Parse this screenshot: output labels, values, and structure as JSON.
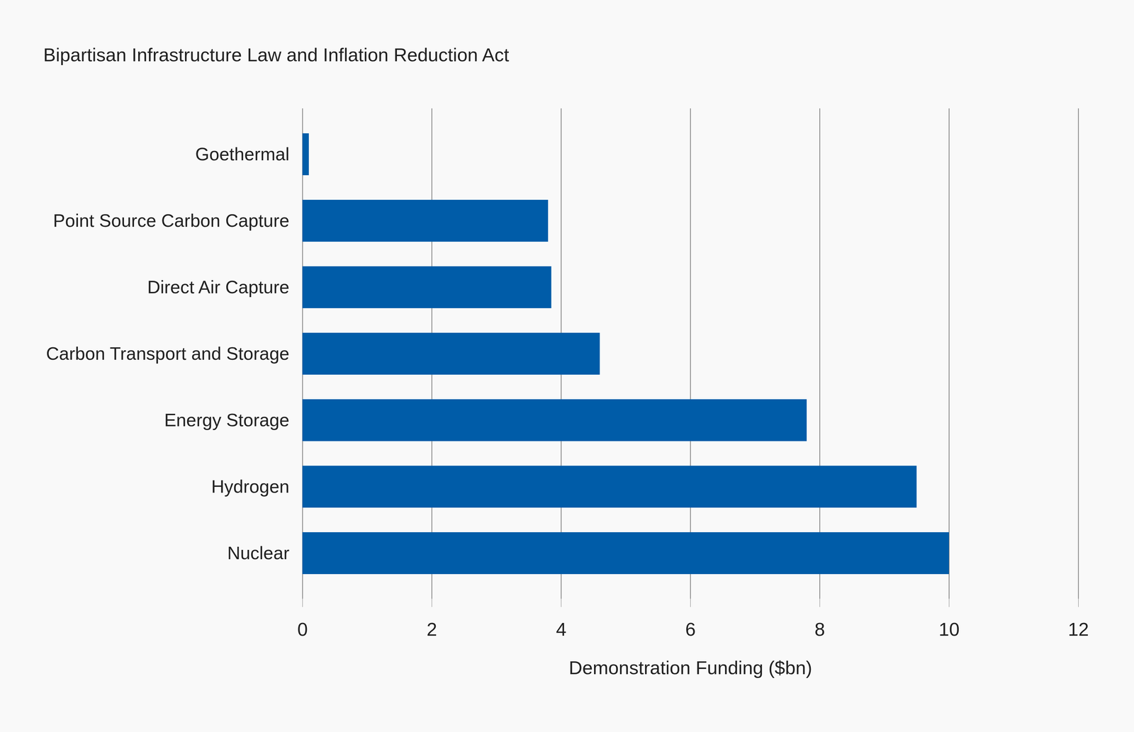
{
  "chart_data": {
    "type": "bar",
    "orientation": "horizontal",
    "title": "Bipartisan Infrastructure Law and Inflation Reduction Act",
    "xlabel": "Demonstration Funding ($bn)",
    "categories": [
      "Goethermal",
      "Point Source Carbon Capture",
      "Direct Air Capture",
      "Carbon Transport and Storage",
      "Energy Storage",
      "Hydrogen",
      "Nuclear"
    ],
    "values": [
      0.1,
      3.8,
      3.85,
      4.6,
      7.8,
      9.5,
      10.0
    ],
    "color": "#005ca8",
    "xlim": [
      0,
      12
    ],
    "xticks": [
      0,
      2,
      4,
      6,
      8,
      10,
      12
    ],
    "grid": true
  }
}
